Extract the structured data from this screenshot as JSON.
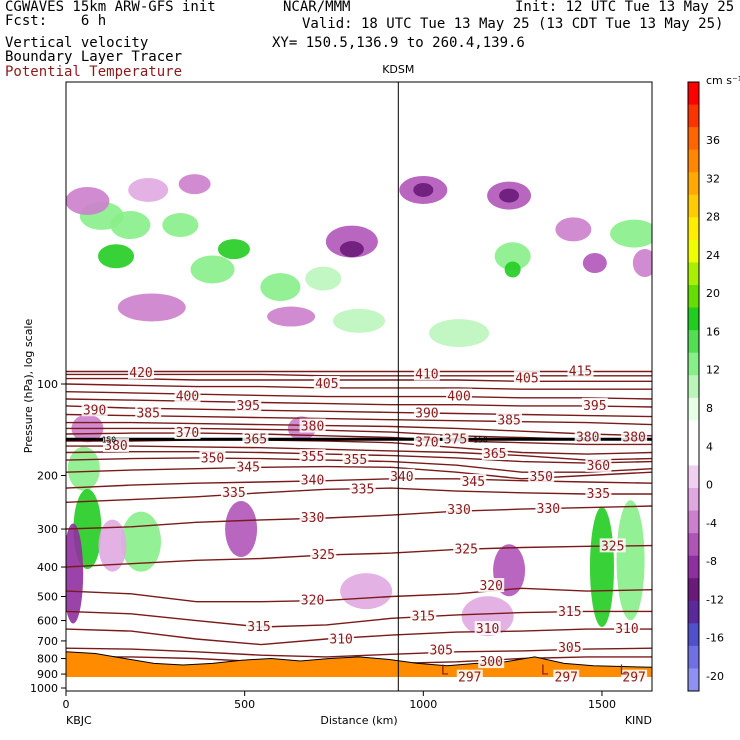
{
  "header": {
    "title": "CGWAVES 15km ARW-GFS init",
    "fcst": "Fcst:    6 h",
    "org": "NCAR/MMM",
    "init": "Init: 12 UTC Tue 13 May 25",
    "valid": "Valid: 18 UTC Tue 13 May 25 (13 CDT Tue 13 May 25)",
    "xy": "XY= 150.5,136.9 to 260.4,139.6",
    "fields": [
      "Vertical velocity",
      "Boundary Layer Tracer",
      "Potential Temperature"
    ]
  },
  "colors": {
    "theta_contour": "#7a1a1a",
    "terrain": "#ff8c00",
    "theta_label": "#8b1a1a"
  },
  "chart_data": {
    "type": "heatmap",
    "xlabel": "Distance (km)",
    "ylabel": "Pressure (hPa), log scale",
    "x_ticks": [
      "0",
      "500",
      "1000",
      "1500"
    ],
    "y_ticks": [
      "100",
      "200",
      "300",
      "400",
      "500",
      "600",
      "700",
      "800",
      "900",
      "1000"
    ],
    "xlim": [
      0,
      1640
    ],
    "ylog": true,
    "endpoints": {
      "left": "KBJC",
      "right": "KIND"
    },
    "station_marker": {
      "label": "KDSM",
      "x": 930
    },
    "colorbar": {
      "unit": "cm s⁻¹",
      "ticks": [
        "36",
        "32",
        "28",
        "24",
        "20",
        "16",
        "12",
        "8",
        "4",
        "0",
        "-4",
        "-8",
        "-12",
        "-16",
        "-20"
      ],
      "colors": [
        "#ff0000",
        "#ff3300",
        "#ff6600",
        "#ff8800",
        "#ffaa00",
        "#ffcc00",
        "#ffee00",
        "#eeff00",
        "#aaee00",
        "#66dd00",
        "#22cc22",
        "#55dd55",
        "#88ee88",
        "#bbf5bb",
        "#e6ffe6",
        "#ffffff",
        "#ffffff",
        "#f0d0f0",
        "#e0a8e0",
        "#cc80cc",
        "#b055b8",
        "#8f2f9f",
        "#6a1a7a",
        "#5a2a9a",
        "#5050c8",
        "#7070e0",
        "#9090f0"
      ]
    },
    "theta_labels": [
      {
        "x": 210,
        "p": 92,
        "v": "420"
      },
      {
        "x": 1010,
        "p": 93,
        "v": "410"
      },
      {
        "x": 1290,
        "p": 96,
        "v": "405"
      },
      {
        "x": 730,
        "p": 100,
        "v": "405"
      },
      {
        "x": 1440,
        "p": 91,
        "v": "415"
      },
      {
        "x": 340,
        "p": 110,
        "v": "400"
      },
      {
        "x": 1100,
        "p": 110,
        "v": "400"
      },
      {
        "x": 510,
        "p": 118,
        "v": "395"
      },
      {
        "x": 1480,
        "p": 118,
        "v": "395"
      },
      {
        "x": 80,
        "p": 122,
        "v": "390"
      },
      {
        "x": 1010,
        "p": 125,
        "v": "390"
      },
      {
        "x": 230,
        "p": 125,
        "v": "385"
      },
      {
        "x": 1240,
        "p": 132,
        "v": "385"
      },
      {
        "x": 340,
        "p": 145,
        "v": "370"
      },
      {
        "x": 690,
        "p": 138,
        "v": "380"
      },
      {
        "x": 1460,
        "p": 150,
        "v": "380"
      },
      {
        "x": 1590,
        "p": 150,
        "v": "380"
      },
      {
        "x": 530,
        "p": 152,
        "v": "365"
      },
      {
        "x": 140,
        "p": 160,
        "v": "380"
      },
      {
        "x": 1010,
        "p": 156,
        "v": "370"
      },
      {
        "x": 1090,
        "p": 152,
        "v": "375"
      },
      {
        "x": 1200,
        "p": 170,
        "v": "365"
      },
      {
        "x": 410,
        "p": 176,
        "v": "350"
      },
      {
        "x": 690,
        "p": 174,
        "v": "355"
      },
      {
        "x": 810,
        "p": 178,
        "v": "355"
      },
      {
        "x": 1490,
        "p": 186,
        "v": "360"
      },
      {
        "x": 510,
        "p": 188,
        "v": "345"
      },
      {
        "x": 1330,
        "p": 202,
        "v": "350"
      },
      {
        "x": 690,
        "p": 208,
        "v": "340"
      },
      {
        "x": 940,
        "p": 202,
        "v": "340"
      },
      {
        "x": 1140,
        "p": 210,
        "v": "345"
      },
      {
        "x": 470,
        "p": 228,
        "v": "335"
      },
      {
        "x": 830,
        "p": 222,
        "v": "335"
      },
      {
        "x": 1490,
        "p": 230,
        "v": "335"
      },
      {
        "x": 1100,
        "p": 260,
        "v": "330"
      },
      {
        "x": 1350,
        "p": 258,
        "v": "330"
      },
      {
        "x": 690,
        "p": 276,
        "v": "330"
      },
      {
        "x": 720,
        "p": 365,
        "v": "325"
      },
      {
        "x": 1120,
        "p": 350,
        "v": "325"
      },
      {
        "x": 1530,
        "p": 342,
        "v": "325"
      },
      {
        "x": 1190,
        "p": 462,
        "v": "320"
      },
      {
        "x": 690,
        "p": 515,
        "v": "320"
      },
      {
        "x": 1000,
        "p": 582,
        "v": "315"
      },
      {
        "x": 1410,
        "p": 562,
        "v": "315"
      },
      {
        "x": 540,
        "p": 630,
        "v": "315"
      },
      {
        "x": 1180,
        "p": 640,
        "v": "310"
      },
      {
        "x": 1570,
        "p": 640,
        "v": "310"
      },
      {
        "x": 770,
        "p": 693,
        "v": "310"
      },
      {
        "x": 1050,
        "p": 753,
        "v": "305"
      },
      {
        "x": 1410,
        "p": 740,
        "v": "305"
      },
      {
        "x": 1190,
        "p": 822,
        "v": "300"
      },
      {
        "x": 1130,
        "p": 925,
        "v": "297"
      },
      {
        "x": 1400,
        "p": 925,
        "v": "297"
      },
      {
        "x": 1590,
        "p": 925,
        "v": "297"
      }
    ],
    "tracer_label": {
      "x": 120,
      "p": 152,
      "v": "150"
    },
    "tracer_label2": {
      "x": 1160,
      "p": 152,
      "v": "150"
    },
    "low_markers": [
      {
        "x": 1060,
        "p": 875,
        "v": "L"
      },
      {
        "x": 1340,
        "p": 875,
        "v": "L"
      },
      {
        "x": 1560,
        "p": 875,
        "v": "L"
      }
    ],
    "theta_lines": [
      {
        "v": 297,
        "p": [
          905,
          905,
          910,
          915,
          918,
          918,
          915,
          910,
          905,
          905
        ]
      },
      {
        "v": 300,
        "p": [
          790,
          790,
          800,
          820,
          830,
          830,
          820,
          800,
          790,
          790
        ]
      },
      {
        "v": 305,
        "p": [
          740,
          745,
          760,
          780,
          790,
          775,
          760,
          755,
          745,
          740
        ]
      },
      {
        "v": 310,
        "p": [
          640,
          650,
          690,
          720,
          690,
          670,
          655,
          650,
          640,
          640
        ]
      },
      {
        "v": 315,
        "p": [
          560,
          570,
          600,
          630,
          620,
          590,
          575,
          565,
          560,
          560
        ]
      },
      {
        "v": 320,
        "p": [
          480,
          490,
          520,
          520,
          515,
          500,
          490,
          470,
          480,
          475
        ]
      },
      {
        "v": 325,
        "p": [
          400,
          390,
          380,
          375,
          365,
          360,
          350,
          345,
          342,
          340
        ]
      },
      {
        "v": 330,
        "p": [
          300,
          295,
          285,
          280,
          276,
          270,
          262,
          258,
          255,
          252
        ]
      },
      {
        "v": 335,
        "p": [
          245,
          240,
          235,
          228,
          222,
          220,
          225,
          228,
          230,
          230
        ]
      },
      {
        "v": 340,
        "p": [
          220,
          215,
          212,
          210,
          208,
          205,
          205,
          208,
          210,
          212
        ]
      },
      {
        "v": 345,
        "p": [
          195,
          192,
          190,
          188,
          187,
          188,
          195,
          205,
          200,
          195
        ]
      },
      {
        "v": 350,
        "p": [
          178,
          176,
          175,
          176,
          178,
          180,
          185,
          195,
          195,
          190
        ]
      },
      {
        "v": 355,
        "p": [
          168,
          167,
          167,
          168,
          170,
          172,
          175,
          180,
          182,
          180
        ]
      },
      {
        "v": 360,
        "p": [
          160,
          160,
          161,
          162,
          164,
          166,
          168,
          172,
          178,
          176
        ]
      },
      {
        "v": 365,
        "p": [
          154,
          154,
          153,
          153,
          154,
          156,
          162,
          168,
          170,
          168
        ]
      },
      {
        "v": 370,
        "p": [
          146,
          145,
          145,
          146,
          148,
          150,
          154,
          156,
          158,
          158
        ]
      },
      {
        "v": 375,
        "p": [
          140,
          140,
          140,
          141,
          142,
          144,
          148,
          150,
          152,
          152
        ]
      },
      {
        "v": 380,
        "p": [
          134,
          134,
          135,
          136,
          137,
          138,
          140,
          143,
          146,
          148
        ]
      },
      {
        "v": 385,
        "p": [
          126,
          127,
          128,
          129,
          130,
          131,
          132,
          133,
          134,
          136
        ]
      },
      {
        "v": 390,
        "p": [
          118,
          120,
          121,
          122,
          123,
          124,
          125,
          126,
          127,
          128
        ]
      },
      {
        "v": 395,
        "p": [
          112,
          113,
          114,
          115,
          116,
          117,
          117,
          118,
          118,
          119
        ]
      },
      {
        "v": 400,
        "p": [
          106,
          107,
          108,
          109,
          110,
          110,
          110,
          111,
          111,
          112
        ]
      },
      {
        "v": 405,
        "p": [
          100,
          101,
          102,
          102,
          103,
          103,
          103,
          104,
          104,
          104
        ]
      },
      {
        "v": 410,
        "p": [
          96,
          96,
          97,
          97,
          97,
          97,
          97,
          98,
          98,
          98
        ]
      },
      {
        "v": 415,
        "p": [
          93,
          93,
          93,
          93,
          94,
          94,
          94,
          94,
          94,
          94
        ]
      },
      {
        "v": 420,
        "p": [
          91,
          91,
          91,
          91,
          91,
          91,
          91,
          91,
          91,
          91
        ]
      }
    ],
    "terrain_p": [
      760,
      770,
      800,
      830,
      840,
      830,
      810,
      800,
      815,
      800,
      790,
      805,
      830,
      845,
      830,
      820,
      790,
      830,
      845,
      850,
      855
    ],
    "ww_blobs": [
      {
        "x": 100,
        "p": 28,
        "r": [
          22,
          14
        ],
        "c": "#88ee88"
      },
      {
        "x": 140,
        "p": 38,
        "r": [
          18,
          12
        ],
        "c": "#22cc22"
      },
      {
        "x": 180,
        "p": 30,
        "r": [
          20,
          14
        ],
        "c": "#88ee88"
      },
      {
        "x": 320,
        "p": 30,
        "r": [
          18,
          12
        ],
        "c": "#88ee88"
      },
      {
        "x": 410,
        "p": 42,
        "r": [
          22,
          14
        ],
        "c": "#88ee88"
      },
      {
        "x": 470,
        "p": 36,
        "r": [
          16,
          10
        ],
        "c": "#22cc22"
      },
      {
        "x": 600,
        "p": 48,
        "r": [
          20,
          14
        ],
        "c": "#88ee88"
      },
      {
        "x": 720,
        "p": 45,
        "r": [
          18,
          12
        ],
        "c": "#bbf5bb"
      },
      {
        "x": 1250,
        "p": 38,
        "r": [
          18,
          14
        ],
        "c": "#88ee88"
      },
      {
        "x": 1250,
        "p": 42,
        "r": [
          8,
          8
        ],
        "c": "#22cc22"
      },
      {
        "x": 1590,
        "p": 32,
        "r": [
          24,
          14
        ],
        "c": "#88ee88"
      },
      {
        "x": 50,
        "p": 190,
        "r": [
          16,
          22
        ],
        "c": "#88ee88"
      },
      {
        "x": 60,
        "p": 300,
        "r": [
          14,
          40
        ],
        "c": "#22cc22"
      },
      {
        "x": 210,
        "p": 330,
        "r": [
          20,
          30
        ],
        "c": "#88ee88"
      },
      {
        "x": 1500,
        "p": 400,
        "r": [
          12,
          60
        ],
        "c": "#22cc22"
      },
      {
        "x": 1580,
        "p": 380,
        "r": [
          14,
          60
        ],
        "c": "#88ee88"
      },
      {
        "x": 1100,
        "p": 68,
        "r": [
          30,
          14
        ],
        "c": "#bbf5bb"
      },
      {
        "x": 820,
        "p": 62,
        "r": [
          26,
          12
        ],
        "c": "#bbf5bb"
      }
    ],
    "wm_blobs": [
      {
        "x": 60,
        "p": 25,
        "r": [
          22,
          14
        ],
        "c": "#cc80cc"
      },
      {
        "x": 230,
        "p": 23,
        "r": [
          20,
          12
        ],
        "c": "#e0a8e0"
      },
      {
        "x": 360,
        "p": 22,
        "r": [
          16,
          10
        ],
        "c": "#cc80cc"
      },
      {
        "x": 800,
        "p": 34,
        "r": [
          26,
          16
        ],
        "c": "#b055b8"
      },
      {
        "x": 800,
        "p": 36,
        "r": [
          12,
          8
        ],
        "c": "#6a1a7a"
      },
      {
        "x": 1000,
        "p": 23,
        "r": [
          24,
          14
        ],
        "c": "#b055b8"
      },
      {
        "x": 1000,
        "p": 23,
        "r": [
          10,
          7
        ],
        "c": "#6a1a7a"
      },
      {
        "x": 1240,
        "p": 24,
        "r": [
          22,
          14
        ],
        "c": "#b055b8"
      },
      {
        "x": 1240,
        "p": 24,
        "r": [
          10,
          7
        ],
        "c": "#6a1a7a"
      },
      {
        "x": 1420,
        "p": 31,
        "r": [
          18,
          12
        ],
        "c": "#cc80cc"
      },
      {
        "x": 1480,
        "p": 40,
        "r": [
          12,
          10
        ],
        "c": "#b055b8"
      },
      {
        "x": 1620,
        "p": 40,
        "r": [
          12,
          14
        ],
        "c": "#cc80cc"
      },
      {
        "x": 240,
        "p": 56,
        "r": [
          34,
          14
        ],
        "c": "#cc80cc"
      },
      {
        "x": 630,
        "p": 60,
        "r": [
          24,
          10
        ],
        "c": "#cc80cc"
      },
      {
        "x": 490,
        "p": 300,
        "r": [
          16,
          28
        ],
        "c": "#b055b8"
      },
      {
        "x": 130,
        "p": 340,
        "r": [
          14,
          26
        ],
        "c": "#e0a8e0"
      },
      {
        "x": 1240,
        "p": 410,
        "r": [
          16,
          26
        ],
        "c": "#b055b8"
      },
      {
        "x": 840,
        "p": 480,
        "r": [
          26,
          18
        ],
        "c": "#e0a8e0"
      },
      {
        "x": 1180,
        "p": 580,
        "r": [
          26,
          20
        ],
        "c": "#e0a8e0"
      },
      {
        "x": 20,
        "p": 420,
        "r": [
          10,
          50
        ],
        "c": "#8f2f9f"
      },
      {
        "x": 60,
        "p": 140,
        "r": [
          16,
          14
        ],
        "c": "#cc80cc"
      },
      {
        "x": 660,
        "p": 140,
        "r": [
          14,
          12
        ],
        "c": "#cc80cc"
      }
    ]
  }
}
